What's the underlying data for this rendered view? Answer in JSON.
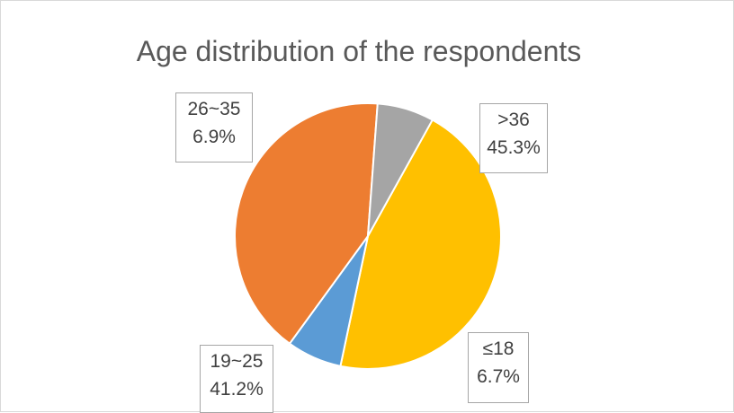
{
  "chart_data": {
    "type": "pie",
    "title": "Age distribution of the respondents",
    "slices": [
      {
        "label": ">36",
        "value": 45.3,
        "display": "45.3%",
        "color": "#FFC000"
      },
      {
        "label": "≤18",
        "value": 6.7,
        "display": "6.7%",
        "color": "#5B9BD5"
      },
      {
        "label": "19~25",
        "value": 41.2,
        "display": "41.2%",
        "color": "#ED7D31"
      },
      {
        "label": "26~35",
        "value": 6.9,
        "display": "6.9%",
        "color": "#A5A5A5"
      }
    ]
  }
}
